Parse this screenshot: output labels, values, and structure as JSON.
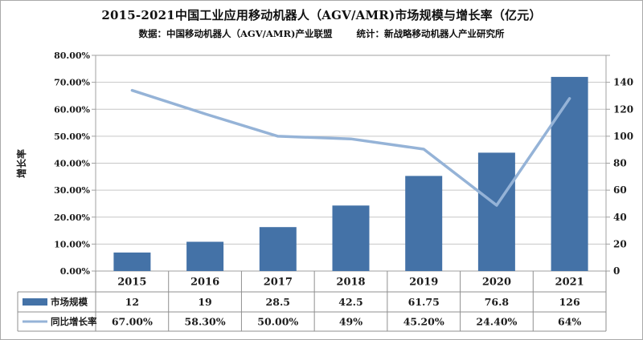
{
  "header": {
    "title": "2015-2021中国工业应用移动机器人（AGV/AMR)市场规模与增长率（亿元）",
    "subtitle_source": "数据：中国移动机器人（AGV/AMR)产业联盟",
    "subtitle_stat": "统计：新战略移动机器人产业研究所"
  },
  "chart_data": {
    "type": "combo",
    "categories": [
      "2015",
      "2016",
      "2017",
      "2018",
      "2019",
      "2020",
      "2021"
    ],
    "series": [
      {
        "name": "市场规模",
        "chart": "bar",
        "axis": "right",
        "color": "#4472a7",
        "values": [
          12,
          19,
          28.5,
          42.5,
          61.75,
          76.8,
          126
        ],
        "labels": [
          "12",
          "19",
          "28.5",
          "42.5",
          "61.75",
          "76.8",
          "126"
        ]
      },
      {
        "name": "同比增长率",
        "chart": "line",
        "axis": "left",
        "color": "#95b3d7",
        "values": [
          67,
          58.3,
          50,
          49,
          45.2,
          24.4,
          64
        ],
        "labels": [
          "67.00%",
          "58.30%",
          "50.00%",
          "49%",
          "45.20%",
          "24.40%",
          "64%"
        ]
      }
    ],
    "left_axis": {
      "title": "增长率",
      "min": 0,
      "max": 80,
      "step": 10,
      "tick_labels": [
        "0.00%",
        "10.00%",
        "20.00%",
        "30.00%",
        "40.00%",
        "50.00%",
        "60.00%",
        "70.00%",
        "80.00%"
      ]
    },
    "right_axis": {
      "min": 0,
      "max": 140,
      "step": 20,
      "tick_labels": [
        "0",
        "20",
        "40",
        "60",
        "80",
        "100",
        "120",
        "140"
      ]
    },
    "grid": true,
    "legend_position": "table-left"
  },
  "colors": {
    "bar": "#4472a7",
    "line": "#95b3d7",
    "gridline": "#c6c6c6",
    "plot_border": "#a0a0a0",
    "table_border": "#8f8f8f",
    "text": "#1c1c1c"
  }
}
